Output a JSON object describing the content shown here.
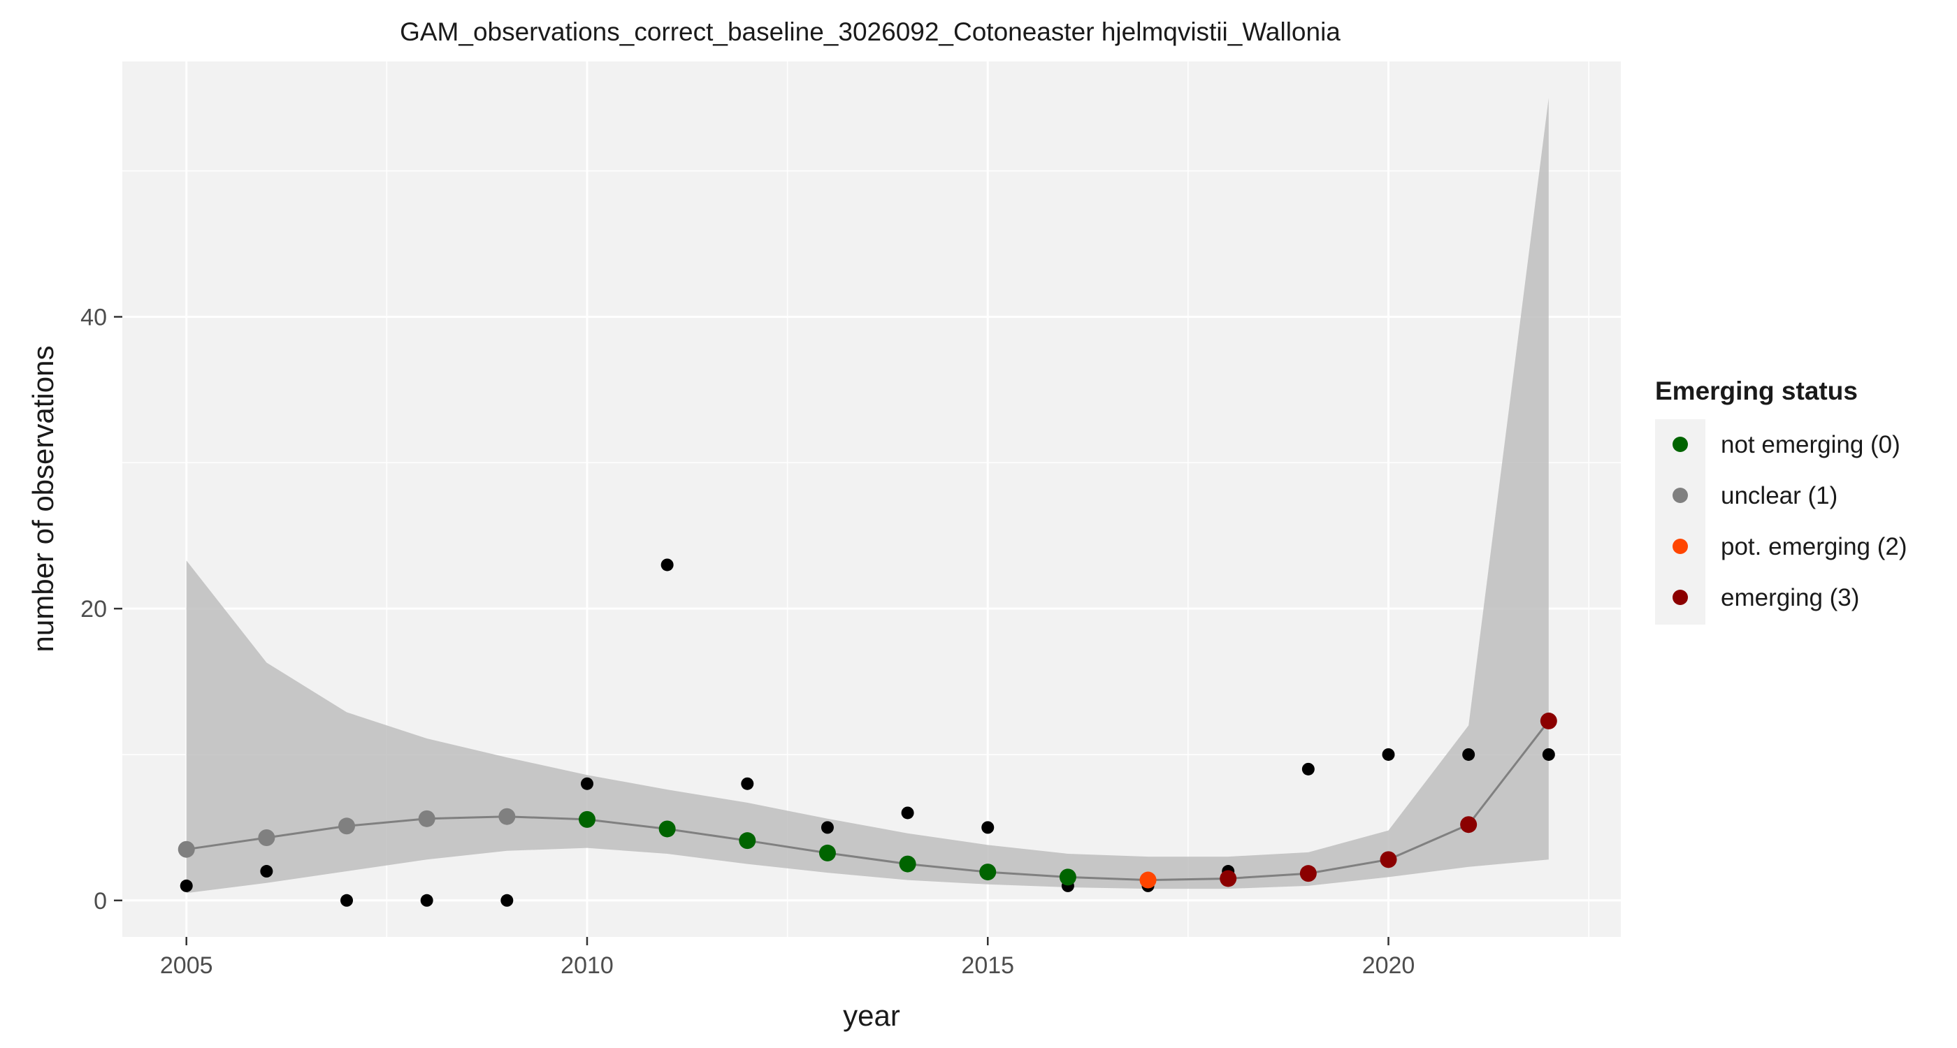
{
  "chart_data": {
    "type": "scatter",
    "title": "GAM_observations_correct_baseline_3026092_Cotoneaster hjelmqvistii_Wallonia",
    "xlabel": "year",
    "ylabel": "number of observations",
    "xlim": [
      2004.2,
      2022.9
    ],
    "ylim": [
      -2.5,
      57.5
    ],
    "x_ticks": [
      2005,
      2010,
      2015,
      2020
    ],
    "y_ticks": [
      0,
      20,
      40
    ],
    "grid": true,
    "legend": {
      "title": "Emerging status",
      "position": "right",
      "entries": [
        {
          "label": "not emerging (0)",
          "color": "#006400"
        },
        {
          "label": "unclear (1)",
          "color": "#808080"
        },
        {
          "label": "pot. emerging (2)",
          "color": "#ff4500"
        },
        {
          "label": "emerging (3)",
          "color": "#8b0000"
        }
      ]
    },
    "observations": {
      "x": [
        2005,
        2006,
        2007,
        2008,
        2009,
        2010,
        2011,
        2012,
        2013,
        2014,
        2015,
        2016,
        2017,
        2018,
        2019,
        2020,
        2021,
        2022
      ],
      "y": [
        1,
        2,
        0,
        0,
        0,
        8,
        23,
        8,
        5,
        6,
        5,
        1,
        1,
        2,
        9,
        10,
        10,
        10
      ],
      "color": "#000000"
    },
    "fit": {
      "x": [
        2005,
        2006,
        2007,
        2008,
        2009,
        2010,
        2011,
        2012,
        2013,
        2014,
        2015,
        2016,
        2017,
        2018,
        2019,
        2020,
        2021,
        2022
      ],
      "y": [
        3.5,
        4.3,
        5.1,
        5.6,
        5.75,
        5.55,
        4.9,
        4.1,
        3.25,
        2.5,
        1.95,
        1.6,
        1.4,
        1.5,
        1.85,
        2.8,
        5.2,
        12.3
      ],
      "lower": [
        0.5,
        1.2,
        2.0,
        2.8,
        3.4,
        3.6,
        3.2,
        2.5,
        1.9,
        1.4,
        1.1,
        0.9,
        0.8,
        0.8,
        1.0,
        1.6,
        2.3,
        2.8
      ],
      "upper": [
        23.3,
        16.3,
        12.9,
        11.1,
        9.8,
        8.6,
        7.6,
        6.7,
        5.6,
        4.6,
        3.8,
        3.2,
        3.0,
        3.0,
        3.3,
        4.8,
        12.0,
        55.0
      ],
      "status": [
        1,
        1,
        1,
        1,
        1,
        0,
        0,
        0,
        0,
        0,
        0,
        0,
        2,
        3,
        3,
        3,
        3,
        3
      ],
      "line_color": "#808080",
      "ribbon_color": "#bebebe"
    }
  }
}
